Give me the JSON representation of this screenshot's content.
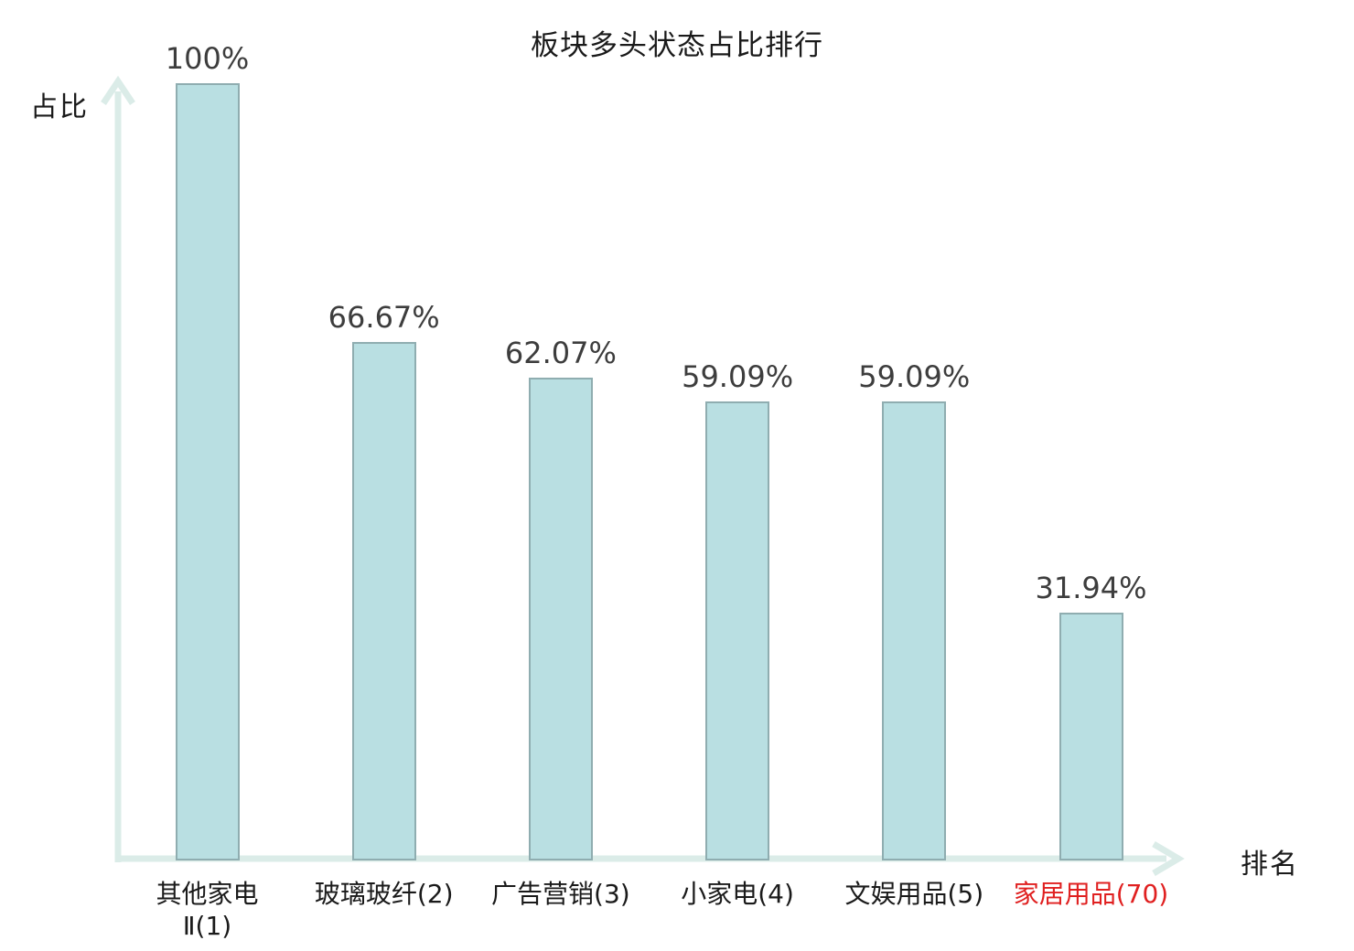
{
  "page": {
    "background": "#ffffff"
  },
  "chart_data": {
    "type": "bar",
    "title": "板块多头状态占比排行",
    "xlabel": "排名",
    "ylabel": "占比",
    "ylim": [
      0,
      100
    ],
    "grid": false,
    "categories": [
      "其他家电Ⅱ(1)",
      "玻璃玻纤(2)",
      "广告营销(3)",
      "小家电(4)",
      "文娱用品(5)",
      "家居用品(70)"
    ],
    "values": [
      100,
      66.67,
      62.07,
      59.09,
      59.09,
      31.94
    ],
    "bars": [
      {
        "category": "其他家电Ⅱ(1)",
        "label_lines": [
          "其他家电",
          "Ⅱ(1)"
        ],
        "value": 100,
        "value_label": "100%",
        "label_color": "#1a1a1a"
      },
      {
        "category": "玻璃玻纤(2)",
        "label_lines": [
          "玻璃玻纤(2)"
        ],
        "value": 66.67,
        "value_label": "66.67%",
        "label_color": "#1a1a1a"
      },
      {
        "category": "广告营销(3)",
        "label_lines": [
          "广告营销(3)"
        ],
        "value": 62.07,
        "value_label": "62.07%",
        "label_color": "#1a1a1a"
      },
      {
        "category": "小家电(4)",
        "label_lines": [
          "小家电(4)"
        ],
        "value": 59.09,
        "value_label": "59.09%",
        "label_color": "#1a1a1a"
      },
      {
        "category": "文娱用品(5)",
        "label_lines": [
          "文娱用品(5)"
        ],
        "value": 59.09,
        "value_label": "59.09%",
        "label_color": "#1a1a1a"
      },
      {
        "category": "家居用品(70)",
        "label_lines": [
          "家居用品(70)"
        ],
        "value": 31.94,
        "value_label": "31.94%",
        "label_color": "#e02020"
      }
    ],
    "colors": {
      "bar_fill": "#b9dfe2",
      "bar_border": "#8fadb0",
      "axis": "#dbece8",
      "value_text": "#3d3d3d",
      "category_text": "#1a1a1a",
      "highlight_text": "#e02020"
    }
  }
}
